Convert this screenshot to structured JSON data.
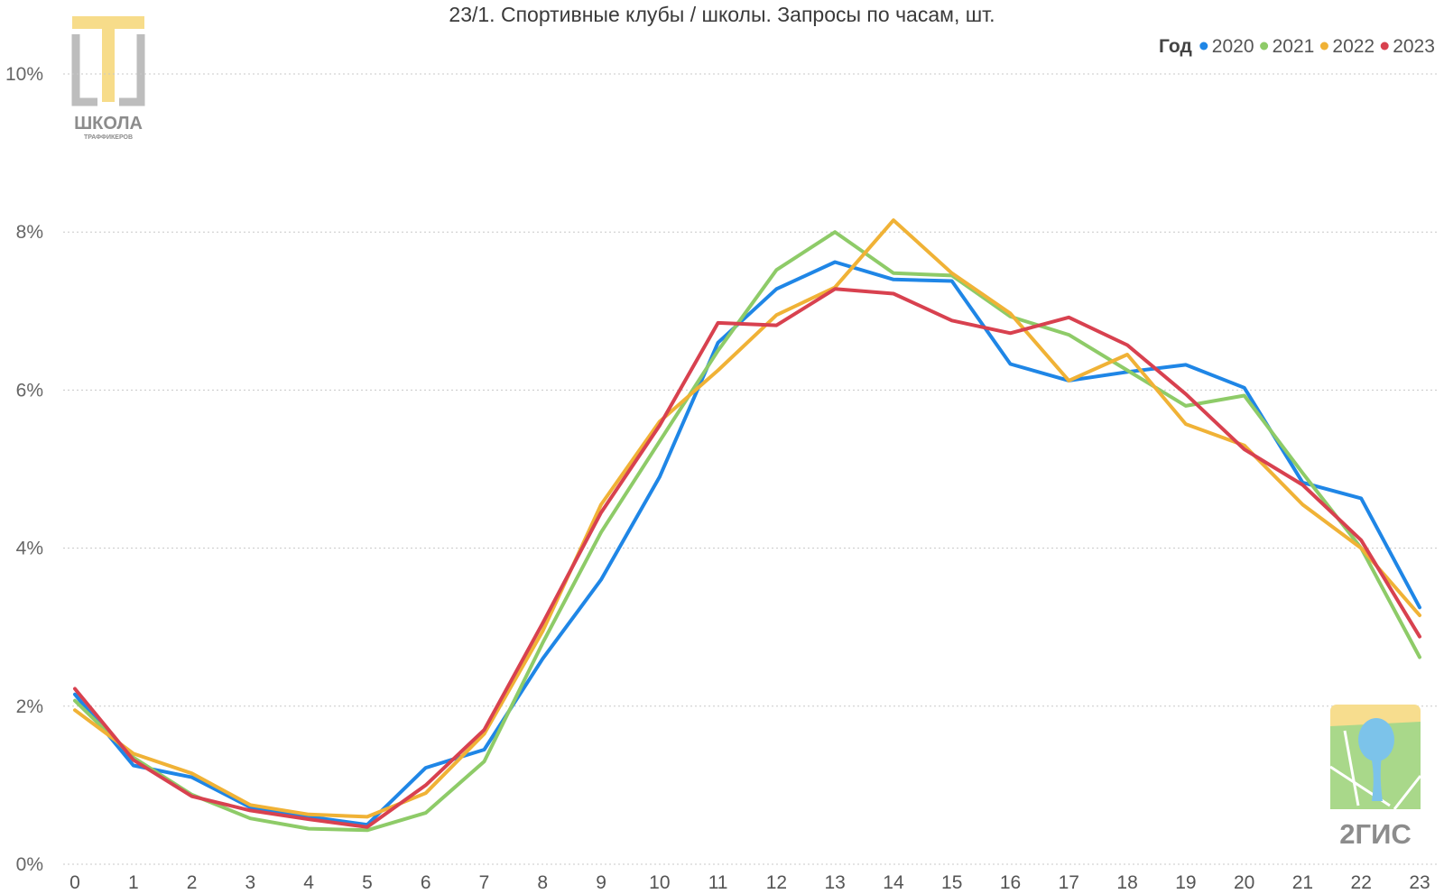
{
  "chart_data": {
    "type": "line",
    "title": "23/1. Спортивные клубы / школы. Запросы по часам, шт.",
    "xlabel": "",
    "ylabel": "",
    "legend_title": "Год",
    "legend_position": "top-right",
    "grid": true,
    "ylim": [
      0,
      10
    ],
    "y_ticks": [
      "0%",
      "2%",
      "4%",
      "6%",
      "8%",
      "10%"
    ],
    "y_tick_values": [
      0,
      2,
      4,
      6,
      8,
      10
    ],
    "x": [
      "0",
      "1",
      "2",
      "3",
      "4",
      "5",
      "6",
      "7",
      "8",
      "9",
      "10",
      "11",
      "12",
      "13",
      "14",
      "15",
      "16",
      "17",
      "18",
      "19",
      "20",
      "21",
      "22",
      "23"
    ],
    "series": [
      {
        "name": "2020",
        "color": "#1f86e6",
        "values": [
          2.15,
          1.25,
          1.1,
          0.72,
          0.6,
          0.5,
          1.22,
          1.45,
          2.6,
          3.6,
          4.9,
          6.6,
          7.28,
          7.62,
          7.4,
          7.38,
          6.33,
          6.12,
          6.23,
          6.32,
          6.03,
          4.83,
          4.63,
          3.25
        ]
      },
      {
        "name": "2021",
        "color": "#8ecb68",
        "values": [
          2.07,
          1.35,
          0.88,
          0.58,
          0.45,
          0.43,
          0.65,
          1.3,
          2.8,
          4.2,
          5.35,
          6.5,
          7.52,
          8.0,
          7.48,
          7.45,
          6.93,
          6.7,
          6.25,
          5.8,
          5.93,
          4.95,
          4.0,
          2.62
        ]
      },
      {
        "name": "2022",
        "color": "#f0b236",
        "values": [
          1.95,
          1.4,
          1.15,
          0.75,
          0.63,
          0.6,
          0.9,
          1.65,
          2.95,
          4.55,
          5.6,
          6.25,
          6.95,
          7.3,
          8.15,
          7.48,
          6.97,
          6.12,
          6.45,
          5.57,
          5.3,
          4.55,
          4.0,
          3.15
        ]
      },
      {
        "name": "2023",
        "color": "#d8414f",
        "values": [
          2.22,
          1.32,
          0.86,
          0.68,
          0.57,
          0.47,
          1.0,
          1.7,
          3.05,
          4.45,
          5.55,
          6.85,
          6.82,
          7.28,
          7.22,
          6.88,
          6.72,
          6.92,
          6.57,
          5.95,
          5.25,
          4.8,
          4.1,
          2.88
        ]
      }
    ]
  },
  "logo_school": {
    "line1": "ШКОЛА",
    "line2": "ТРАФФИКЕРОВ"
  },
  "logo_2gis": {
    "text": "2ГИС"
  }
}
